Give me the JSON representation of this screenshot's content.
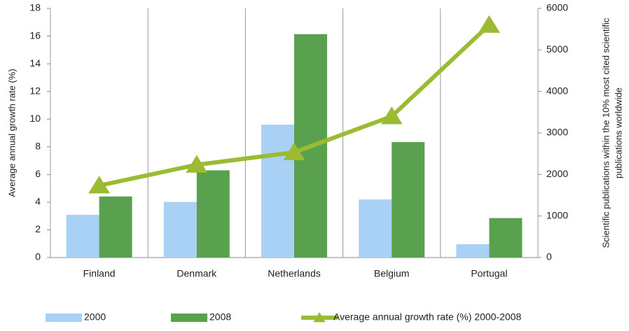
{
  "chart_data": {
    "type": "bar-line",
    "categories": [
      "Finland",
      "Denmark",
      "Netherlands",
      "Belgium",
      "Portugal"
    ],
    "ylabel": "Average annual growth rate (%)",
    "y2label": [
      "Scientific publications within the 10% most cited scientific",
      "publications worldwide"
    ],
    "ylim": [
      0,
      18
    ],
    "yticks": [
      0,
      2,
      4,
      6,
      8,
      10,
      12,
      14,
      16,
      18
    ],
    "y2lim": [
      0,
      6000
    ],
    "y2ticks": [
      0,
      1000,
      2000,
      3000,
      4000,
      5000,
      6000
    ],
    "series": [
      {
        "name": "2000",
        "type": "bar",
        "axis": "y2",
        "color": "#a9d1f5",
        "values": [
          1030,
          1340,
          3200,
          1400,
          320
        ]
      },
      {
        "name": "2008",
        "type": "bar",
        "axis": "y2",
        "color": "#5aa14f",
        "values": [
          1470,
          2100,
          5380,
          2780,
          950
        ]
      },
      {
        "name": "Average annual growth rate (%) 2000-2008",
        "type": "line",
        "axis": "y",
        "color": "#9bbb33",
        "values": [
          5.2,
          6.7,
          7.6,
          10.2,
          16.8
        ]
      }
    ]
  }
}
